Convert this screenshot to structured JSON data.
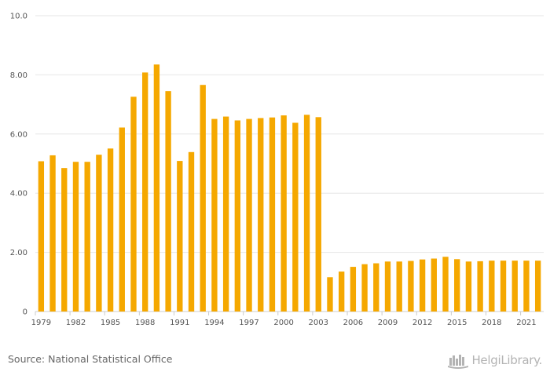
{
  "chart_data": {
    "type": "bar",
    "x": [
      1979,
      1980,
      1981,
      1982,
      1983,
      1984,
      1985,
      1986,
      1987,
      1988,
      1989,
      1990,
      1991,
      1992,
      1993,
      1994,
      1995,
      1996,
      1997,
      1998,
      1999,
      2000,
      2001,
      2002,
      2003,
      2004,
      2005,
      2006,
      2007,
      2008,
      2009,
      2010,
      2011,
      2012,
      2013,
      2014,
      2015,
      2016,
      2017,
      2018,
      2019,
      2020,
      2021,
      2022
    ],
    "values": [
      5.08,
      5.28,
      4.85,
      5.06,
      5.06,
      5.3,
      5.51,
      6.22,
      7.26,
      8.08,
      8.35,
      7.45,
      5.09,
      5.39,
      7.66,
      6.51,
      6.59,
      6.46,
      6.51,
      6.54,
      6.56,
      6.63,
      6.38,
      6.65,
      6.57,
      1.16,
      1.35,
      1.51,
      1.6,
      1.63,
      1.69,
      1.69,
      1.71,
      1.76,
      1.79,
      1.85,
      1.77,
      1.69,
      1.7,
      1.72,
      1.72,
      1.72,
      1.72,
      1.72
    ],
    "x_tick_labels": [
      "1979",
      "1982",
      "1985",
      "1988",
      "1991",
      "1994",
      "1997",
      "2000",
      "2003",
      "2006",
      "2009",
      "2012",
      "2015",
      "2018",
      "2021"
    ],
    "y_tick_labels": [
      "0",
      "2.00",
      "4.00",
      "6.00",
      "8.00",
      "10.0"
    ],
    "y_ticks": [
      0,
      2,
      4,
      6,
      8,
      10
    ],
    "ylim": [
      0,
      10
    ],
    "grid": true,
    "legend": "none",
    "bar_color": "#F5A800"
  },
  "footer": {
    "source": "Source: National Statistical Office",
    "brand": "HelgiLibrary.",
    "brand_icon": "helgi-logo-icon"
  },
  "colors": {
    "bar": "#F5A800",
    "grid": "#e6e6e6",
    "axis": "#cccccc"
  }
}
